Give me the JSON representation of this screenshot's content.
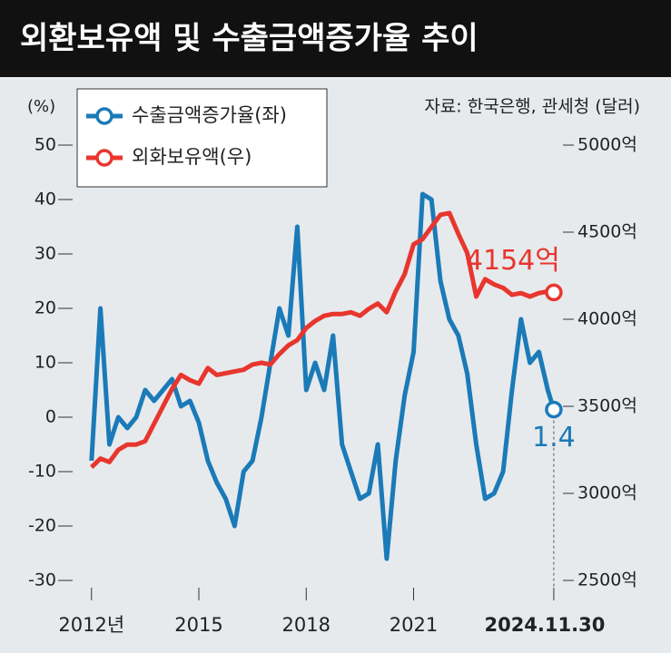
{
  "chart_data": {
    "type": "line",
    "title": "외환보유액 및 수출금액증가율 추이",
    "source": "자료: 한국은행, 관세청 (달러)",
    "y_label": "(%)",
    "x": [
      2012,
      2012.25,
      2012.5,
      2012.75,
      2013,
      2013.25,
      2013.5,
      2013.75,
      2014,
      2014.25,
      2014.5,
      2014.75,
      2015,
      2015.25,
      2015.5,
      2015.75,
      2016,
      2016.25,
      2016.5,
      2016.75,
      2017,
      2017.25,
      2017.5,
      2017.75,
      2018,
      2018.25,
      2018.5,
      2018.75,
      2019,
      2019.25,
      2019.5,
      2019.75,
      2020,
      2020.25,
      2020.5,
      2020.75,
      2021,
      2021.25,
      2021.5,
      2021.75,
      2022,
      2022.25,
      2022.5,
      2022.75,
      2023,
      2023.25,
      2023.5,
      2023.75,
      2024,
      2024.25,
      2024.5,
      2024.75,
      2024.917
    ],
    "xlim": [
      2011.6,
      2025.3
    ],
    "xticks": [
      {
        "value": 2012,
        "label": "2012년"
      },
      2015,
      2018,
      2021,
      {
        "value": 2024.917,
        "label": "2024.11.30"
      }
    ],
    "ylim": [
      -30,
      50
    ],
    "yticks": [
      -30,
      -20,
      -10,
      0,
      10,
      20,
      30,
      40,
      50
    ],
    "y2lim": [
      2500,
      5000
    ],
    "y2ticks": [
      {
        "value": 2500,
        "label": "2500억"
      },
      {
        "value": 3000,
        "label": "3000억"
      },
      {
        "value": 3500,
        "label": "3500억"
      },
      {
        "value": 4000,
        "label": "4000억"
      },
      {
        "value": 4500,
        "label": "4500억"
      },
      {
        "value": 5000,
        "label": "5000억"
      }
    ],
    "series": [
      {
        "name": "수출금액증가율(좌)",
        "color": "#1b7ab8",
        "values": [
          -8,
          20,
          -5,
          0,
          -2,
          0,
          5,
          3,
          5,
          7,
          2,
          3,
          -1,
          -8,
          -12,
          -15,
          -20,
          -10,
          -8,
          0,
          10,
          20,
          15,
          35,
          5,
          10,
          5,
          15,
          -5,
          -10,
          -15,
          -14,
          -5,
          -26,
          -8,
          4,
          12,
          41,
          40,
          25,
          18,
          15,
          8,
          -5,
          -15,
          -14,
          -10,
          5,
          18,
          10,
          12,
          5,
          1.4
        ],
        "value_labels": [
          null,
          null,
          null,
          null,
          null,
          null,
          null,
          null,
          null,
          null,
          null,
          null,
          null,
          null,
          null,
          null,
          null,
          null,
          null,
          null,
          null,
          null,
          null,
          null,
          null,
          null,
          null,
          null,
          null,
          null,
          null,
          null,
          null,
          null,
          null,
          null,
          null,
          null,
          null,
          null,
          null,
          null,
          null,
          null,
          null,
          null,
          null,
          null,
          null,
          null,
          null,
          null,
          "1.4"
        ]
      },
      {
        "name": "외화보유액(우)",
        "color": "#e8362e",
        "axis": "y2",
        "values": [
          3150,
          3200,
          3180,
          3250,
          3280,
          3280,
          3300,
          3400,
          3500,
          3600,
          3680,
          3650,
          3630,
          3720,
          3680,
          3690,
          3700,
          3710,
          3740,
          3750,
          3740,
          3800,
          3850,
          3880,
          3950,
          3990,
          4020,
          4030,
          4030,
          4040,
          4020,
          4060,
          4090,
          4040,
          4160,
          4260,
          4430,
          4460,
          4530,
          4600,
          4610,
          4490,
          4380,
          4130,
          4230,
          4200,
          4180,
          4140,
          4150,
          4130,
          4150,
          4160,
          4154
        ],
        "value_labels": [
          null,
          null,
          null,
          null,
          null,
          null,
          null,
          null,
          null,
          null,
          null,
          null,
          null,
          null,
          null,
          null,
          null,
          null,
          null,
          null,
          null,
          null,
          null,
          null,
          null,
          null,
          null,
          null,
          null,
          null,
          null,
          null,
          null,
          null,
          null,
          null,
          null,
          null,
          null,
          null,
          null,
          null,
          null,
          null,
          null,
          null,
          null,
          null,
          null,
          null,
          null,
          null,
          "4154억"
        ]
      }
    ]
  }
}
